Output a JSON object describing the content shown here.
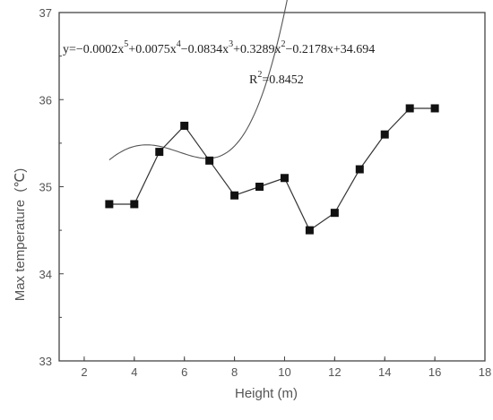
{
  "chart_data": {
    "type": "line",
    "xlabel": "Height (m)",
    "ylabel": "Max temperature  (℃)",
    "xlim": [
      1,
      18
    ],
    "ylim": [
      33,
      37
    ],
    "xticks": [
      "2",
      "4",
      "6",
      "8",
      "10",
      "12",
      "14",
      "16",
      "18"
    ],
    "yticks": [
      "33",
      "34",
      "35",
      "36",
      "37"
    ],
    "grid": false,
    "series": [
      {
        "kind": "measured",
        "marker": "square",
        "x": [
          3,
          4,
          5,
          6,
          7,
          8,
          9,
          10,
          11,
          12,
          13,
          14,
          15,
          16
        ],
        "values": [
          34.8,
          34.8,
          35.4,
          35.7,
          35.3,
          34.9,
          35.0,
          35.1,
          34.5,
          34.7,
          35.2,
          35.6,
          35.9,
          35.9
        ]
      },
      {
        "kind": "polynomial-fit",
        "coefficients": [
          -0.0002,
          0.0075,
          -0.0834,
          0.3289,
          -0.2178,
          34.694
        ],
        "x_range": [
          3,
          16
        ]
      }
    ],
    "annotation": {
      "equation_parts": [
        "y=−0.0002x",
        "5",
        "+0.0075x",
        "4",
        "−0.0834x",
        "3",
        "+0.3289x",
        "2",
        "−0.2178x+34.694"
      ],
      "r_squared_parts": [
        "R",
        "2",
        "=0.8452"
      ]
    }
  }
}
